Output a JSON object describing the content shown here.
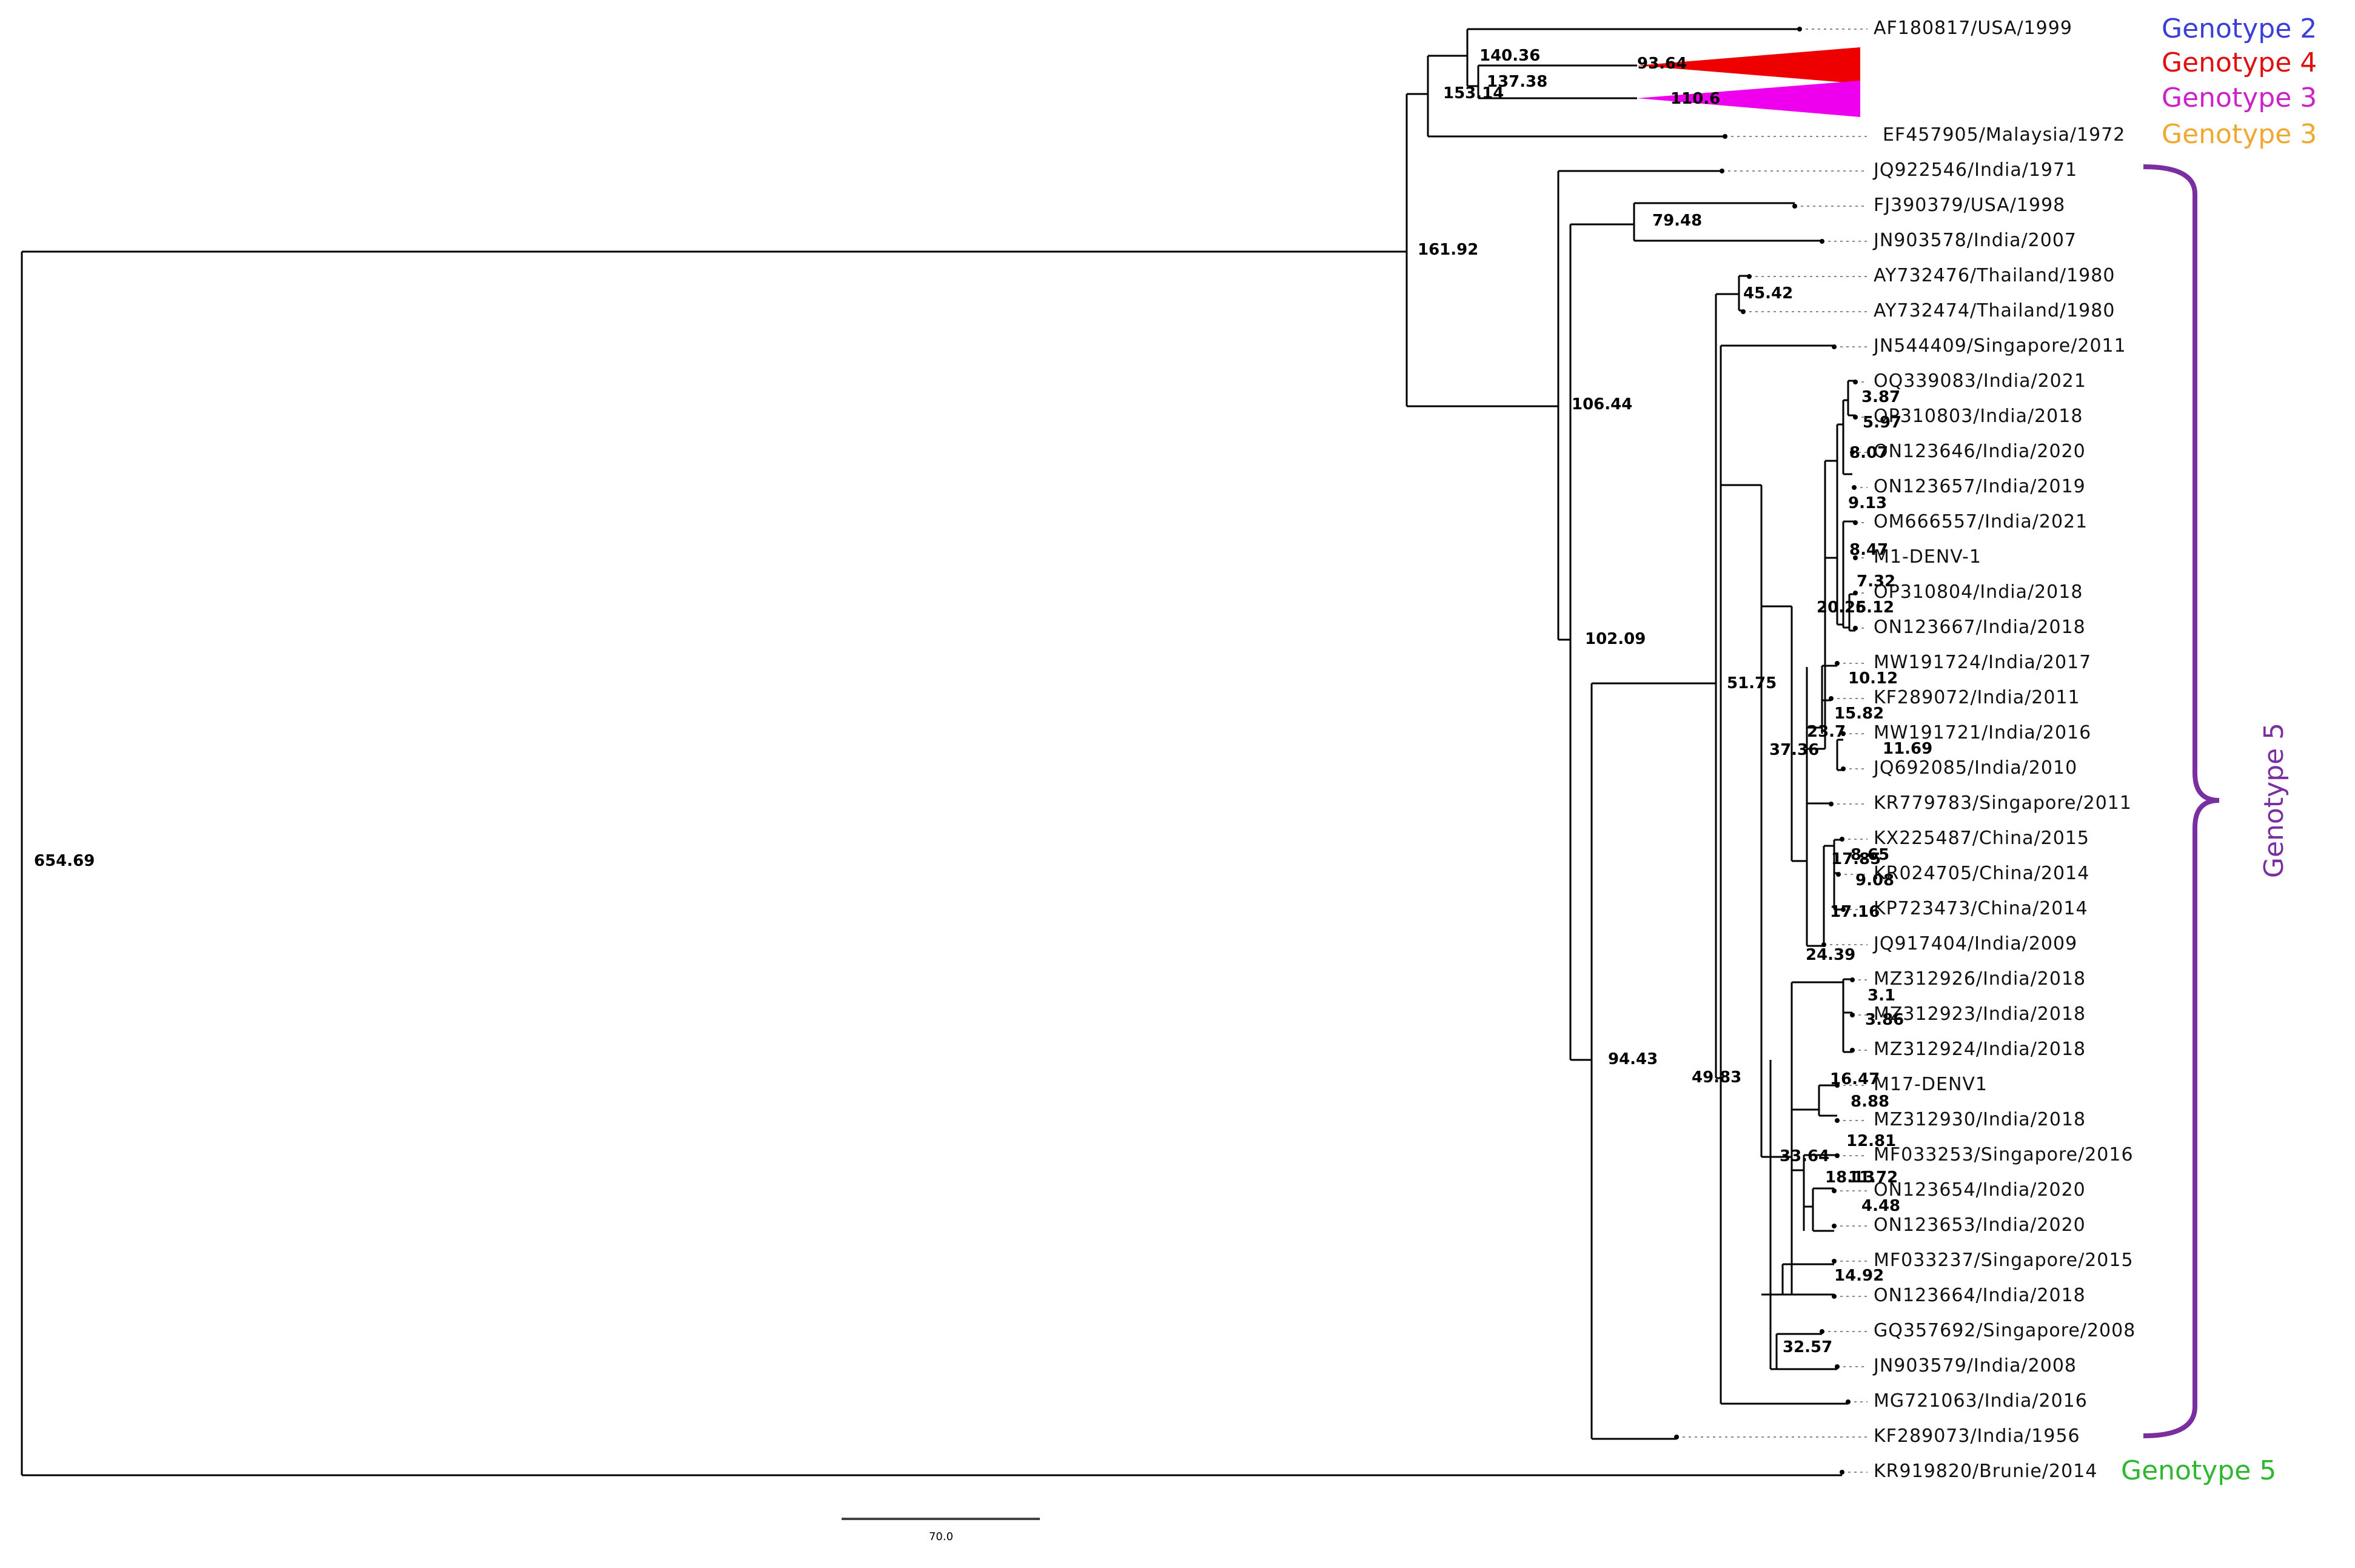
{
  "taxa": [
    {
      "label": "AF180817/USA/1999",
      "color": "#111111"
    },
    {
      "label": "EF457905/Malaysia/1972",
      "color": "#f0a830"
    },
    {
      "label": "JQ922546/India/1971",
      "color": "#111111"
    },
    {
      "label": "FJ390379/USA/1998",
      "color": "#111111"
    },
    {
      "label": "JN903578/India/2007",
      "color": "#111111"
    },
    {
      "label": "AY732476/Thailand/1980",
      "color": "#111111"
    },
    {
      "label": "AY732474/Thailand/1980",
      "color": "#111111"
    },
    {
      "label": "JN544409/Singapore/2011",
      "color": "#111111"
    },
    {
      "label": "OQ339083/India/2021",
      "color": "#111111"
    },
    {
      "label": "OP310803/India/2018",
      "color": "#111111"
    },
    {
      "label": "ON123646/India/2020",
      "color": "#111111"
    },
    {
      "label": "ON123657/India/2019",
      "color": "#111111"
    },
    {
      "label": "OM666557/India/2021",
      "color": "#111111"
    },
    {
      "label": "M1-DENV-1",
      "color": "#7a1010"
    },
    {
      "label": "OP310804/India/2018",
      "color": "#111111"
    },
    {
      "label": "ON123667/India/2018",
      "color": "#111111"
    },
    {
      "label": "MW191724/India/2017",
      "color": "#111111"
    },
    {
      "label": "KF289072/India/2011",
      "color": "#111111"
    },
    {
      "label": "MW191721/India/2016",
      "color": "#111111"
    },
    {
      "label": "JQ692085/India/2010",
      "color": "#111111"
    },
    {
      "label": "KR779783/Singapore/2011",
      "color": "#111111"
    },
    {
      "label": "KX225487/China/2015",
      "color": "#111111"
    },
    {
      "label": "KR024705/China/2014",
      "color": "#111111"
    },
    {
      "label": "KP723473/China/2014",
      "color": "#111111"
    },
    {
      "label": "JQ917404/India/2009",
      "color": "#111111"
    },
    {
      "label": "MZ312926/India/2018",
      "color": "#111111"
    },
    {
      "label": "MZ312923/India/2018",
      "color": "#111111"
    },
    {
      "label": "MZ312924/India/2018",
      "color": "#111111"
    },
    {
      "label": "M17-DENV1",
      "color": "#7a1010"
    },
    {
      "label": "MZ312930/India/2018",
      "color": "#111111"
    },
    {
      "label": "MF033253/Singapore/2016",
      "color": "#111111"
    },
    {
      "label": "ON123654/India/2020",
      "color": "#111111"
    },
    {
      "label": "ON123653/India/2020",
      "color": "#111111"
    },
    {
      "label": "MF033237/Singapore/2015",
      "color": "#111111"
    },
    {
      "label": "ON123664/India/2018",
      "color": "#111111"
    },
    {
      "label": "GQ357692/Singapore/2008",
      "color": "#111111"
    },
    {
      "label": "JN903579/India/2008",
      "color": "#111111"
    },
    {
      "label": "MG721063/India/2016",
      "color": "#111111"
    },
    {
      "label": "KF289073/India/1956",
      "color": "#111111"
    },
    {
      "label": "KR919820/Brunie/2014",
      "color": "#2e7d32"
    }
  ],
  "support_values": [
    "654.69",
    "161.92",
    "153.14",
    "140.36",
    "137.38",
    "93.64",
    "110.6",
    "106.44",
    "79.48",
    "102.09",
    "45.42",
    "51.75",
    "94.43",
    "49.83",
    "37.36",
    "23.7",
    "20.25",
    "3.87",
    "5.97",
    "8.07",
    "9.13",
    "8.47",
    "7.32",
    "6.12",
    "10.12",
    "15.82",
    "11.69",
    "17.85",
    "8.65",
    "9.08",
    "17.16",
    "24.39",
    "3.1",
    "3.86",
    "16.47",
    "8.88",
    "33.64",
    "12.81",
    "18.13",
    "11.72",
    "4.48",
    "14.92",
    "32.57"
  ],
  "genotype_labels": [
    {
      "text": "Genotype 2",
      "color": "#3b3fd8"
    },
    {
      "text": "Genotype 4",
      "color": "#e01010"
    },
    {
      "text": "Genotype 3",
      "color": "#cc22cc"
    },
    {
      "text": "Genotype 3",
      "color": "#f0a830"
    },
    {
      "text": "Genotype 5",
      "color": "#2fb82f"
    }
  ],
  "clade_bracket": {
    "text": "Genotype 5",
    "color": "#7a2fa0"
  },
  "collapsed_clades": [
    {
      "name": "genotype-4-clade",
      "color": "#ee0000"
    },
    {
      "name": "genotype-3-clade",
      "color": "#ee00ee"
    }
  ],
  "scale_bar": {
    "label": "70.0"
  }
}
